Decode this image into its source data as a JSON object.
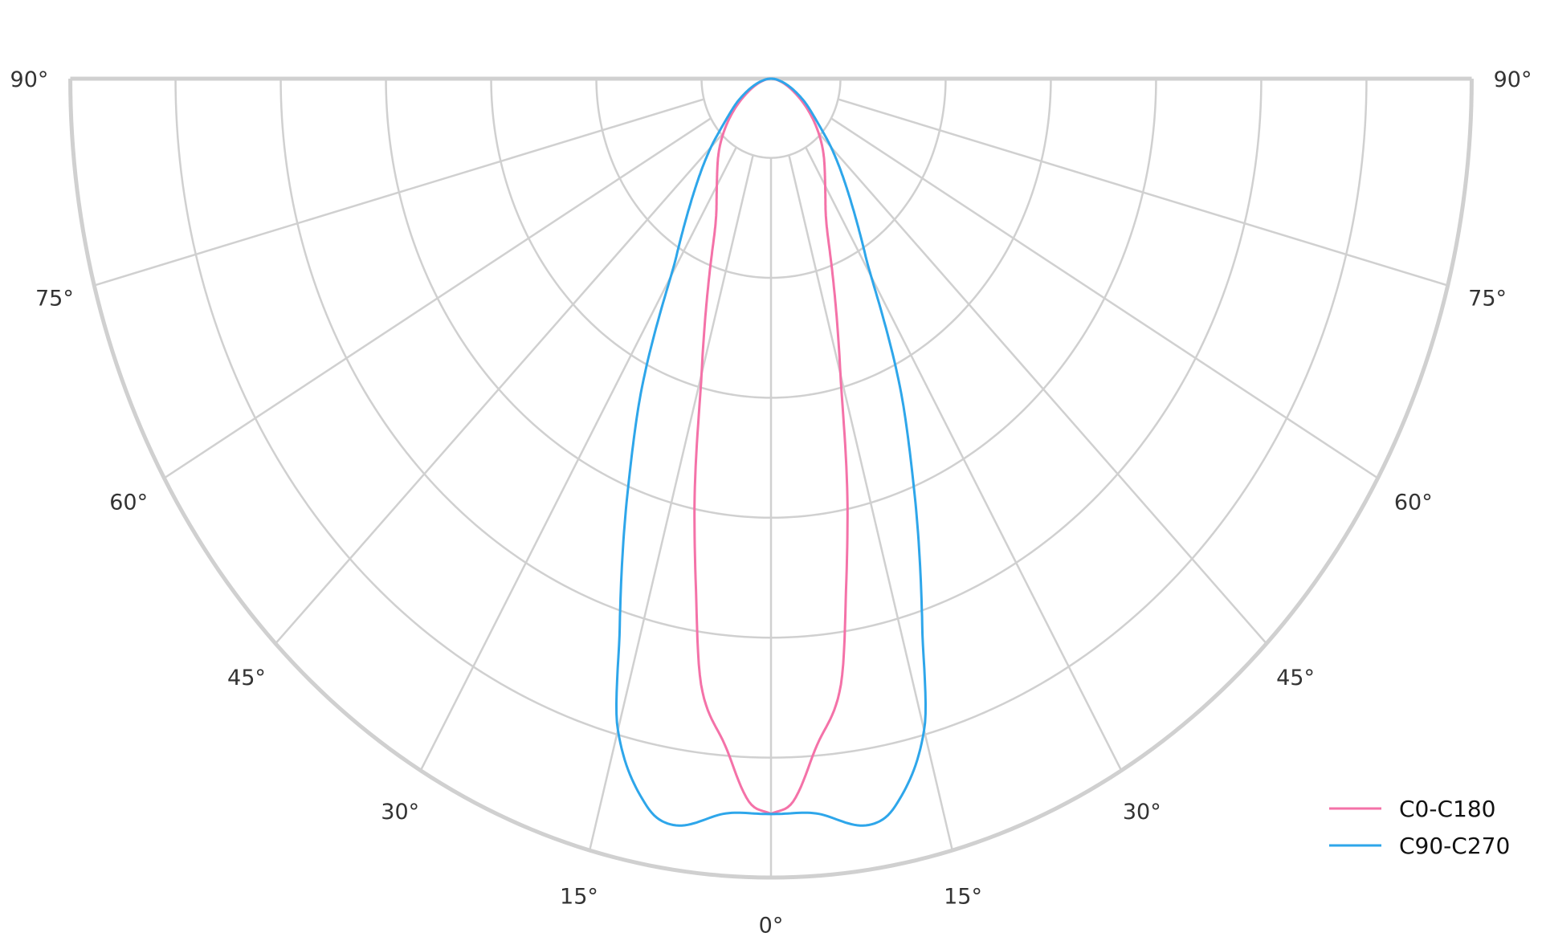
{
  "chart_data": {
    "type": "polar",
    "title": "",
    "angle_unit": "degrees",
    "angle_ticks": [
      "90°",
      "75°",
      "60°",
      "45°",
      "30°",
      "15°",
      "0°",
      "15°",
      "30°",
      "45°",
      "60°",
      "75°",
      "90°"
    ],
    "angle_tick_values": [
      -90,
      -75,
      -60,
      -45,
      -30,
      -15,
      0,
      15,
      30,
      45,
      60,
      75,
      90
    ],
    "radial_tick_labels": "none",
    "radial_rings": [
      0.66,
      1.66,
      2.66,
      3.66,
      4.66,
      5.66,
      6.66
    ],
    "rlim": [
      0,
      6.66
    ],
    "grid": true,
    "symmetric": true,
    "legend_position": "bottom-right",
    "series": [
      {
        "name": "C0-C180",
        "color": "#f472a8",
        "angles": [
          0,
          2,
          4.4,
          7.4,
          9.5,
          11.4,
          15,
          21.6,
          27.5,
          40.6,
          60,
          75,
          90
        ],
        "values": [
          6.13,
          6.03,
          5.59,
          5.12,
          4.32,
          3.68,
          2.55,
          1.5,
          1.12,
          0.75,
          0.3,
          0.1,
          0
        ]
      },
      {
        "name": "C90-C270",
        "color": "#2ea6ea",
        "angles": [
          0,
          4,
          8.2,
          11,
          15.1,
          17.4,
          21.6,
          24.5,
          31.3,
          46.8,
          60,
          75,
          90
        ],
        "values": [
          6.13,
          6.14,
          6.29,
          6.18,
          5.6,
          4.81,
          3.7,
          3.06,
          1.73,
          0.72,
          0.35,
          0.12,
          0
        ]
      }
    ],
    "grid_color": "#d0d0d0"
  }
}
